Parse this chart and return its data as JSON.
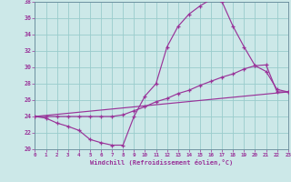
{
  "xlabel": "Windchill (Refroidissement éolien,°C)",
  "bg_color": "#cce8e8",
  "grid_color": "#99cccc",
  "line_color": "#993399",
  "xlim": [
    0,
    23
  ],
  "ylim": [
    20,
    38
  ],
  "yticks": [
    20,
    22,
    24,
    26,
    28,
    30,
    32,
    34,
    36,
    38
  ],
  "xticks": [
    0,
    1,
    2,
    3,
    4,
    5,
    6,
    7,
    8,
    9,
    10,
    11,
    12,
    13,
    14,
    15,
    16,
    17,
    18,
    19,
    20,
    21,
    22,
    23
  ],
  "line1_x": [
    0,
    1,
    2,
    3,
    4,
    5,
    6,
    7,
    8,
    9,
    10,
    11,
    12,
    13,
    14,
    15,
    16,
    17,
    18,
    19,
    20,
    21,
    22,
    23
  ],
  "line1_y": [
    24,
    23.8,
    23.2,
    22.8,
    22.3,
    21.2,
    20.8,
    20.5,
    20.5,
    24.0,
    26.5,
    28.0,
    32.5,
    35.0,
    36.5,
    37.5,
    38.3,
    38.0,
    35.0,
    32.5,
    30.2,
    29.5,
    27.3,
    27.0
  ],
  "line2_x": [
    0,
    23
  ],
  "line2_y": [
    24,
    27.0
  ],
  "line3_x": [
    0,
    1,
    2,
    3,
    4,
    5,
    6,
    7,
    8,
    9,
    10,
    11,
    12,
    13,
    14,
    15,
    16,
    17,
    18,
    19,
    20,
    21,
    22,
    23
  ],
  "line3_y": [
    24,
    24,
    24,
    24,
    24,
    24,
    24,
    24,
    24.2,
    24.7,
    25.2,
    25.8,
    26.2,
    26.8,
    27.2,
    27.8,
    28.3,
    28.8,
    29.2,
    29.8,
    30.2,
    30.3,
    27.0,
    27.0
  ]
}
